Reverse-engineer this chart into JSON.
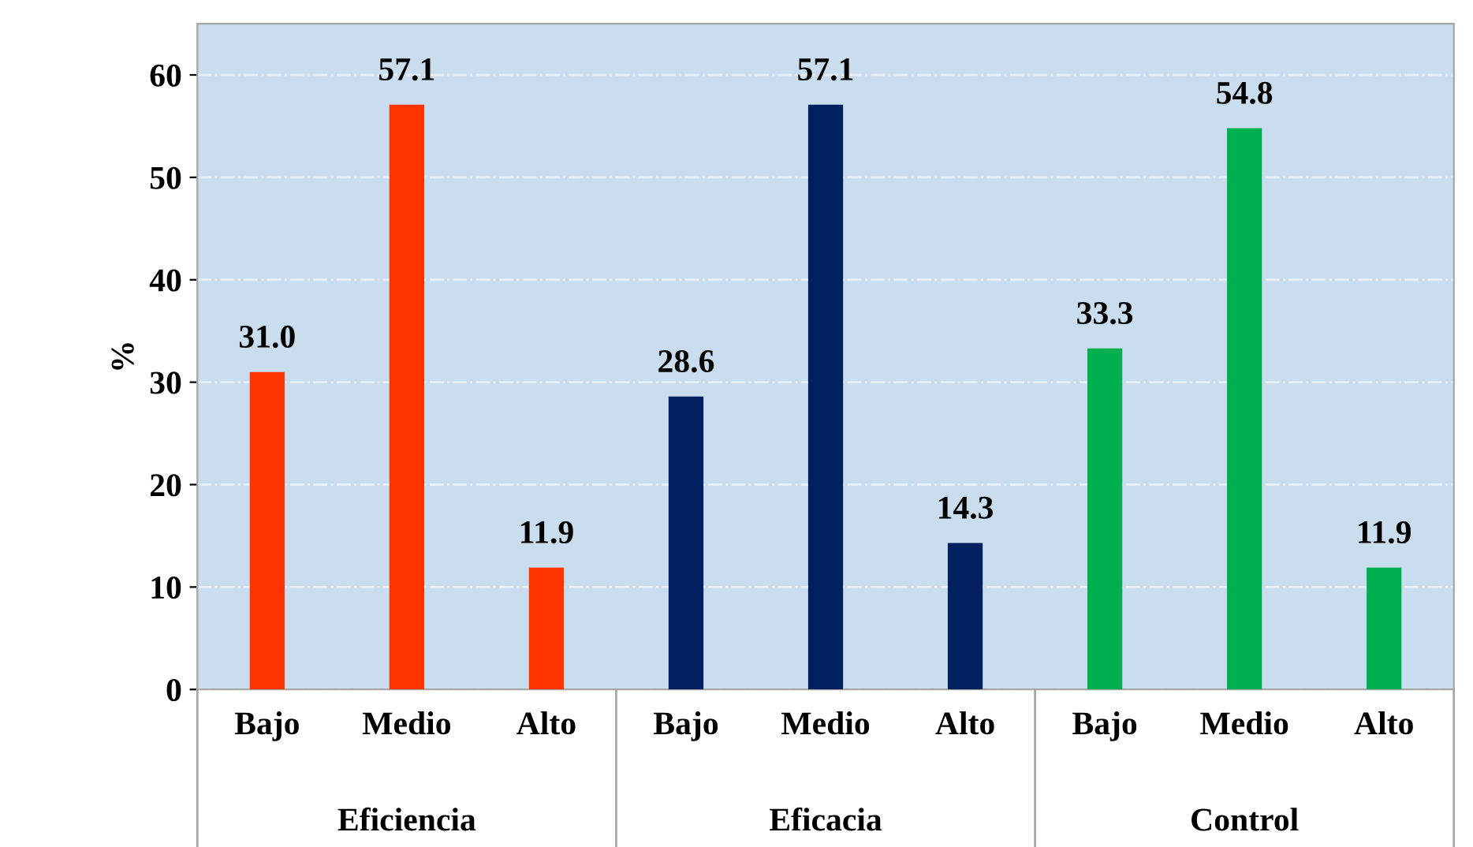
{
  "chart_data": {
    "type": "bar",
    "ylabel": "%",
    "categories": [
      "Bajo",
      "Medio",
      "Alto",
      "Bajo",
      "Medio",
      "Alto",
      "Bajo",
      "Medio",
      "Alto"
    ],
    "series": [
      {
        "color": "#ff3300",
        "values": [
          31.0,
          57.1,
          11.9,
          null,
          null,
          null,
          null,
          null,
          null
        ],
        "value_labels": [
          "31.0",
          "57.1",
          "11.9",
          null,
          null,
          null,
          null,
          null,
          null
        ]
      },
      {
        "color": "#002060",
        "values": [
          null,
          null,
          null,
          28.6,
          57.1,
          14.3,
          null,
          null,
          null
        ],
        "value_labels": [
          null,
          null,
          null,
          "28.6",
          "57.1",
          "14.3",
          null,
          null,
          null
        ]
      },
      {
        "color": "#00b050",
        "values": [
          null,
          null,
          null,
          null,
          null,
          null,
          33.3,
          54.8,
          11.9
        ],
        "value_labels": [
          null,
          null,
          null,
          null,
          null,
          null,
          "33.3",
          "54.8",
          "11.9"
        ]
      }
    ],
    "annotations": [
      "Eficiencia",
      "Eficacia",
      "Control"
    ],
    "ylim": [
      0,
      65
    ],
    "yticks": [
      0,
      10,
      20,
      30,
      40,
      50,
      60
    ],
    "grid": "y",
    "legend": false
  }
}
